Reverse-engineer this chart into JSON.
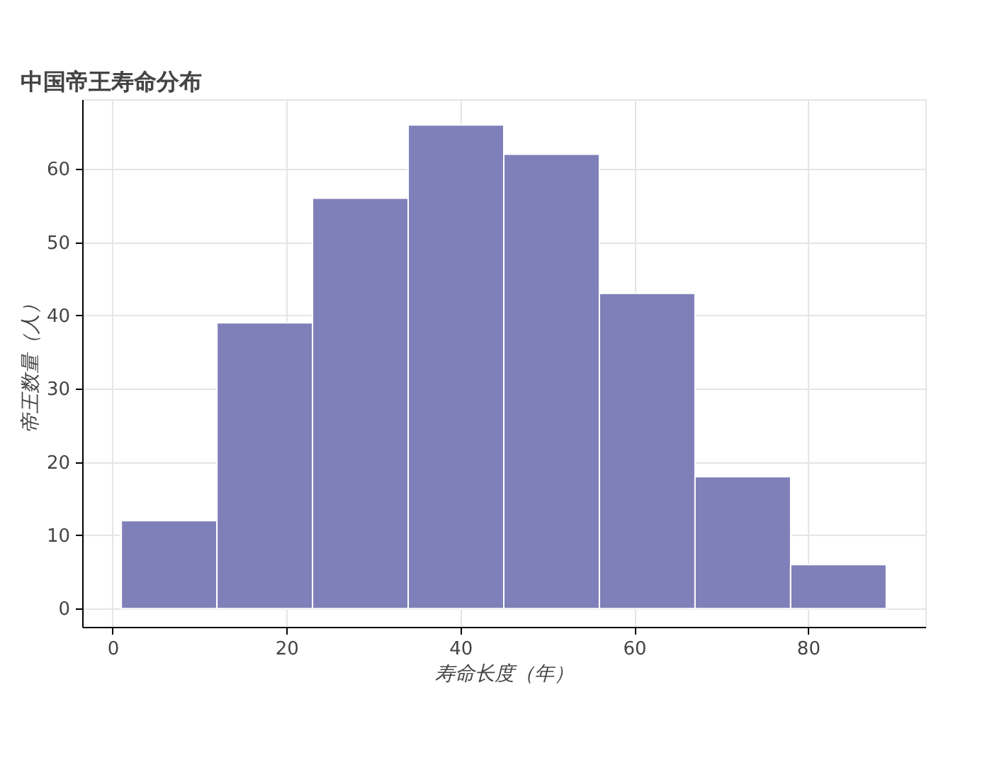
{
  "chart_data": {
    "type": "histogram",
    "title": "中国帝王寿命分布",
    "xlabel": "寿命长度（年）",
    "ylabel": "帝王数量（人）",
    "bins": [
      1,
      12,
      23,
      34,
      45,
      56,
      67,
      78,
      89
    ],
    "values": [
      12,
      39,
      56,
      66,
      62,
      43,
      18,
      6
    ],
    "color": "#7f7fb9",
    "xlim": [
      -3.5,
      93.5
    ],
    "xticks": [
      0,
      20,
      40,
      60,
      80
    ],
    "ylim": [
      -2.5,
      69.5
    ],
    "yticks": [
      0,
      10,
      20,
      30,
      40,
      50,
      60
    ],
    "grid": true
  }
}
